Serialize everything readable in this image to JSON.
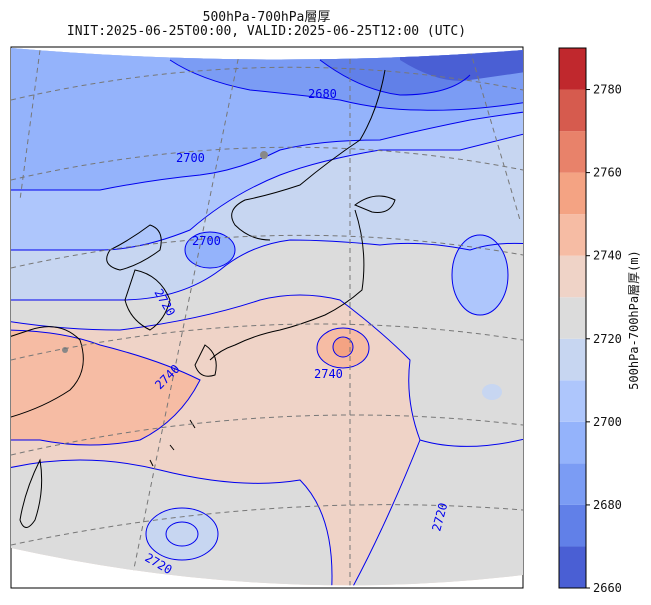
{
  "title": {
    "line1": "500hPa-700hPa層厚",
    "line2": "INIT:2025-06-25T00:00, VALID:2025-06-25T12:00 (UTC)"
  },
  "colorbar": {
    "label": "500hPa-700hPa層厚(m)",
    "ticks": [
      "2660",
      "2680",
      "2700",
      "2720",
      "2740",
      "2760",
      "2780"
    ],
    "levels": [
      2660,
      2665,
      2670,
      2675,
      2680,
      2685,
      2690,
      2695,
      2700,
      2705,
      2710,
      2715,
      2720,
      2725,
      2730,
      2735,
      2740,
      2745,
      2750,
      2755,
      2760,
      2765,
      2770,
      2775,
      2780,
      2785,
      2790
    ],
    "colors": [
      "#4a5fd4",
      "#6180e8",
      "#7b9cf4",
      "#94b3fb",
      "#aec6fc",
      "#c7d6f1",
      "#dcdcdc",
      "#efd3c7",
      "#f6bca4",
      "#f4a383",
      "#e8826a",
      "#d65b4e",
      "#c0282d"
    ]
  },
  "map": {
    "contour_labels": [
      "2680",
      "2700",
      "2700",
      "2720",
      "2740",
      "2740",
      "2720",
      "2720"
    ],
    "contour_color": "#0000ee",
    "coast_color": "#000000",
    "grid_color": "#777777"
  }
}
